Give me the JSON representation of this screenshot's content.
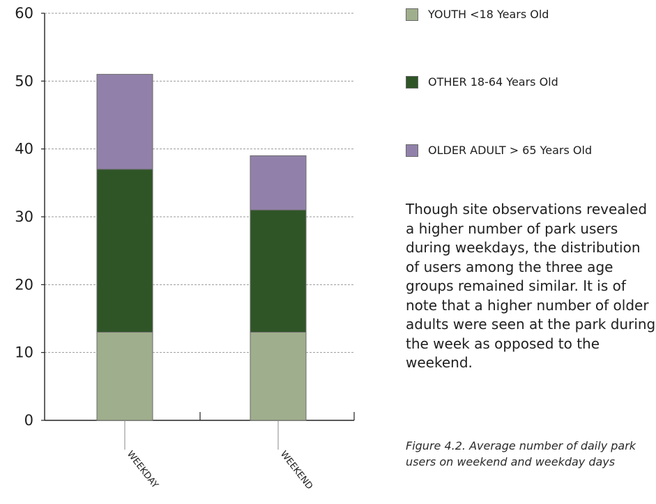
{
  "chart_data": {
    "type": "bar",
    "stacked": true,
    "categories": [
      "WEEKDAY",
      "WEEKEND"
    ],
    "series": [
      {
        "name": "YOUTH <18 Years Old",
        "values": [
          13,
          13
        ],
        "color": "#9fae8c"
      },
      {
        "name": "OTHER 18-64 Years Old",
        "values": [
          24,
          18
        ],
        "color": "#2f5527"
      },
      {
        "name": "OLDER ADULT > 65 Years Old",
        "values": [
          14,
          8
        ],
        "color": "#9181aa"
      }
    ],
    "ylim": [
      0,
      60
    ],
    "yticks": [
      0,
      10,
      20,
      30,
      40,
      50,
      60
    ],
    "grid": true,
    "legend_position": "right",
    "title": "",
    "xlabel": "",
    "ylabel": ""
  },
  "description": "Though site observations revealed a higher number of park users during weekdays, the distribution of users among the three age groups remained similar. It is of note that a higher number of older adults were seen at the park during the week as opposed to the weekend.",
  "caption": "Figure 4.2. Average number of daily park users on weekend and weekday days"
}
